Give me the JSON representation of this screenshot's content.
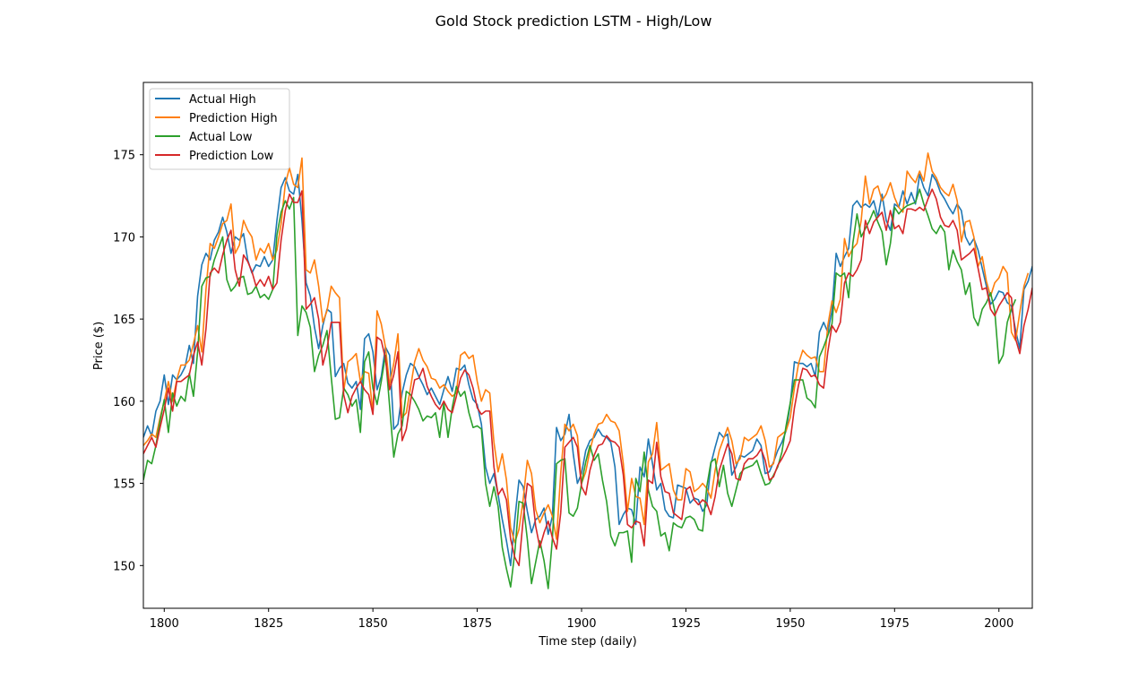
{
  "chart_data": {
    "type": "line",
    "title": "Gold Stock prediction LSTM - High/Low",
    "xlabel": "Time step (daily)",
    "ylabel": "Price ($)",
    "xlim": [
      1795,
      2008
    ],
    "ylim": [
      147.4,
      179.4
    ],
    "xticks": [
      1800,
      1825,
      1850,
      1875,
      1900,
      1925,
      1950,
      1975,
      2000
    ],
    "yticks": [
      150,
      155,
      160,
      165,
      170,
      175
    ],
    "grid": false,
    "legend_position": "upper left",
    "x_start": 1795,
    "series": [
      {
        "name": "Actual High",
        "color": "#1f77b4",
        "values": [
          157.8,
          158.5,
          157.9,
          159.4,
          160.0,
          161.6,
          159.8,
          161.6,
          161.3,
          161.6,
          162.1,
          163.4,
          162.3,
          166.4,
          168.3,
          169.0,
          168.6,
          169.8,
          170.3,
          171.2,
          170.3,
          169.0,
          170.0,
          169.8,
          170.2,
          168.6,
          167.8,
          168.3,
          168.2,
          168.8,
          168.2,
          168.6,
          171.0,
          173.0,
          173.6,
          172.8,
          172.6,
          173.8,
          171.0,
          167.2,
          166.4,
          164.5,
          163.2,
          164.6,
          165.6,
          165.4,
          161.5,
          162.0,
          162.3,
          161.1,
          160.8,
          161.2,
          159.5,
          163.8,
          164.1,
          163.0,
          160.7,
          161.5,
          163.3,
          162.8,
          158.3,
          158.6,
          160.5,
          161.6,
          162.3,
          162.1,
          161.5,
          161.0,
          160.4,
          160.8,
          160.3,
          159.8,
          160.7,
          161.5,
          160.6,
          162.0,
          161.9,
          162.2,
          161.0,
          160.1,
          159.8,
          158.6,
          156.0,
          155.0,
          155.6,
          154.3,
          152.8,
          151.5,
          150.0,
          152.8,
          155.2,
          154.8,
          153.3,
          152.0,
          152.8,
          153.0,
          153.5,
          151.9,
          153.0,
          158.4,
          157.6,
          158.0,
          159.2,
          156.8,
          155.0,
          155.6,
          157.0,
          157.6,
          157.8,
          158.3,
          157.9,
          157.8,
          157.5,
          156.0,
          152.5,
          153.1,
          153.5,
          153.4,
          152.5,
          156.0,
          155.4,
          157.7,
          156.2,
          154.6,
          155.0,
          153.4,
          153.0,
          152.9,
          154.9,
          154.8,
          154.7,
          153.8,
          154.1,
          154.0,
          153.3,
          153.7,
          156.2,
          157.2,
          158.1,
          157.8,
          158.0,
          155.5,
          156.0,
          156.7,
          156.6,
          156.8,
          157.0,
          157.7,
          157.3,
          155.6,
          155.7,
          156.3,
          157.0,
          157.5,
          158.2,
          159.8,
          162.4,
          162.3,
          162.3,
          162.1,
          162.3,
          161.5,
          164.2,
          164.8,
          164.2,
          165.5,
          169.0,
          168.2,
          168.8,
          169.3,
          171.9,
          172.2,
          171.8,
          172.0,
          171.8,
          172.2,
          171.2,
          172.6,
          171.0,
          170.4,
          172.0,
          171.8,
          172.8,
          172.0,
          172.7,
          172.0,
          173.8,
          173.0,
          172.5,
          173.8,
          173.4,
          172.7,
          172.3,
          171.8,
          171.4,
          172.0,
          171.6,
          170.0,
          169.5,
          169.9,
          169.2,
          168.1,
          167.0,
          165.9,
          166.2,
          166.7,
          166.6,
          166.0,
          165.8,
          164.3,
          163.2,
          166.8,
          167.3,
          168.2,
          168.5
        ]
      },
      {
        "name": "Prediction High",
        "color": "#ff7f0e",
        "values": [
          157.3,
          157.6,
          158.0,
          157.8,
          159.0,
          160.0,
          161.2,
          160.0,
          161.3,
          162.2,
          162.2,
          162.5,
          163.5,
          164.6,
          163.0,
          166.8,
          169.6,
          169.3,
          170.0,
          170.8,
          171.0,
          172.0,
          169.0,
          169.5,
          171.0,
          170.4,
          170.0,
          168.6,
          169.3,
          169.0,
          169.6,
          168.6,
          169.2,
          170.8,
          173.2,
          174.2,
          173.2,
          173.0,
          174.8,
          168.0,
          167.8,
          168.6,
          167.0,
          164.8,
          165.5,
          167.0,
          166.6,
          166.3,
          160.6,
          162.4,
          162.6,
          162.9,
          161.2,
          161.8,
          161.7,
          159.3,
          165.5,
          164.7,
          163.3,
          161.0,
          162.3,
          164.1,
          159.0,
          159.3,
          160.8,
          162.4,
          163.2,
          162.5,
          162.1,
          161.4,
          161.3,
          160.8,
          161.0,
          160.6,
          160.3,
          160.5,
          162.8,
          163.0,
          162.6,
          162.8,
          161.2,
          160.0,
          160.7,
          160.5,
          157.5,
          155.7,
          156.8,
          155.2,
          152.3,
          151.4,
          152.2,
          154.0,
          156.4,
          155.6,
          153.4,
          152.6,
          153.2,
          153.7,
          153.0,
          151.6,
          155.6,
          158.6,
          158.2,
          158.6,
          157.9,
          155.0,
          155.7,
          157.0,
          158.0,
          158.6,
          158.7,
          159.2,
          158.8,
          158.7,
          158.2,
          156.2,
          153.3,
          155.3,
          154.2,
          154.1,
          152.5,
          156.3,
          156.8,
          158.7,
          155.8,
          156.0,
          156.2,
          154.6,
          154.0,
          154.0,
          155.9,
          155.7,
          154.5,
          154.7,
          155.0,
          154.7,
          154.1,
          155.8,
          157.0,
          157.7,
          158.4,
          157.6,
          156.2,
          156.5,
          157.8,
          157.6,
          157.8,
          158.0,
          158.5,
          157.6,
          156.0,
          156.2,
          157.8,
          158.0,
          158.2,
          159.0,
          160.8,
          162.3,
          163.1,
          162.8,
          162.6,
          162.7,
          161.8,
          161.8,
          164.6,
          166.1,
          165.4,
          166.2,
          169.9,
          168.8,
          169.3,
          169.6,
          171.0,
          173.7,
          172.0,
          172.9,
          173.1,
          172.2,
          172.6,
          173.3,
          172.4,
          171.8,
          171.5,
          174.0,
          173.6,
          173.3,
          174.0,
          173.4,
          175.1,
          174.0,
          173.6,
          173.0,
          172.7,
          172.5,
          173.2,
          172.2,
          169.7,
          170.9,
          171.0,
          170.0,
          168.2,
          168.8,
          167.3,
          166.4,
          167.2,
          167.5,
          168.2,
          167.8,
          164.2,
          163.7,
          165.4,
          167.0,
          167.8
        ]
      },
      {
        "name": "Actual Low",
        "color": "#2ca02c",
        "values": [
          155.2,
          156.4,
          156.2,
          157.3,
          158.8,
          160.1,
          158.1,
          160.5,
          159.7,
          160.3,
          160.0,
          161.7,
          160.3,
          163.0,
          167.0,
          167.5,
          167.6,
          168.6,
          169.3,
          170.0,
          167.4,
          166.7,
          167.0,
          167.5,
          167.6,
          166.5,
          166.6,
          167.0,
          166.3,
          166.5,
          166.2,
          166.8,
          170.1,
          171.5,
          172.2,
          171.7,
          172.4,
          164.0,
          165.8,
          165.4,
          164.5,
          161.8,
          162.8,
          163.4,
          164.3,
          161.5,
          158.9,
          159.0,
          160.8,
          160.4,
          159.7,
          160.1,
          158.1,
          162.4,
          163.0,
          160.8,
          159.8,
          161.2,
          162.8,
          159.7,
          156.6,
          158.0,
          158.5,
          160.6,
          160.4,
          160.0,
          159.5,
          158.8,
          159.1,
          159.0,
          159.3,
          157.8,
          159.9,
          157.8,
          159.6,
          160.9,
          160.3,
          160.6,
          159.3,
          158.4,
          158.5,
          158.3,
          155.0,
          153.6,
          154.8,
          153.6,
          151.1,
          149.8,
          148.7,
          150.8,
          153.9,
          153.8,
          151.6,
          148.9,
          150.2,
          151.5,
          150.3,
          148.6,
          151.6,
          156.2,
          156.4,
          156.5,
          153.2,
          153.0,
          153.5,
          155.0,
          156.3,
          157.3,
          156.4,
          156.8,
          155.2,
          153.9,
          151.8,
          151.2,
          152.0,
          152.0,
          152.1,
          150.2,
          155.3,
          154.5,
          156.9,
          154.6,
          153.6,
          153.3,
          151.8,
          152.0,
          150.9,
          152.6,
          152.4,
          152.3,
          152.9,
          153.0,
          152.8,
          152.2,
          152.1,
          154.8,
          156.3,
          156.5,
          154.8,
          156.1,
          154.4,
          153.6,
          154.6,
          155.6,
          155.9,
          156.0,
          156.1,
          156.4,
          155.6,
          154.9,
          155.0,
          155.5,
          156.0,
          156.9,
          158.5,
          159.9,
          161.3,
          161.3,
          161.3,
          160.2,
          160.0,
          159.6,
          162.7,
          163.3,
          164.0,
          164.7,
          167.8,
          167.6,
          167.8,
          166.3,
          169.6,
          171.4,
          170.0,
          170.5,
          171.0,
          171.6,
          170.9,
          170.3,
          168.3,
          169.6,
          171.8,
          171.4,
          171.7,
          171.9,
          172.0,
          172.1,
          172.9,
          172.0,
          171.3,
          170.5,
          170.2,
          170.7,
          170.3,
          168.0,
          169.2,
          168.5,
          168.0,
          166.5,
          167.2,
          165.1,
          164.6,
          165.6,
          166.0,
          166.6,
          165.5,
          162.3,
          162.8,
          164.8,
          165.6,
          166.2
        ]
      },
      {
        "name": "Prediction Low",
        "color": "#d62728",
        "values": [
          156.8,
          157.3,
          157.8,
          157.2,
          158.4,
          159.5,
          160.8,
          159.4,
          161.2,
          161.2,
          161.4,
          161.6,
          162.8,
          163.6,
          162.2,
          164.4,
          167.8,
          168.1,
          167.8,
          168.9,
          169.8,
          170.4,
          168.0,
          167.0,
          168.9,
          168.5,
          167.9,
          167.0,
          167.4,
          167.0,
          167.6,
          166.8,
          167.2,
          169.8,
          171.6,
          172.6,
          172.1,
          172.1,
          172.8,
          165.6,
          165.9,
          166.3,
          165.0,
          162.2,
          163.2,
          164.8,
          164.8,
          164.8,
          160.4,
          159.3,
          160.3,
          160.8,
          161.2,
          160.7,
          160.4,
          159.2,
          163.9,
          163.7,
          162.6,
          160.7,
          161.6,
          163.0,
          157.6,
          158.3,
          160.0,
          161.3,
          161.4,
          162.0,
          160.9,
          160.3,
          159.8,
          159.5,
          160.0,
          159.5,
          159.3,
          160.3,
          161.4,
          161.9,
          161.6,
          160.8,
          159.6,
          159.2,
          159.4,
          159.4,
          156.0,
          154.3,
          154.7,
          154.0,
          151.6,
          150.5,
          150.0,
          152.8,
          155.0,
          154.8,
          152.4,
          151.1,
          152.0,
          152.7,
          151.7,
          151.0,
          153.2,
          157.2,
          157.5,
          157.8,
          157.2,
          154.8,
          154.3,
          155.8,
          156.7,
          157.3,
          157.4,
          157.9,
          157.6,
          157.5,
          157.2,
          155.5,
          152.5,
          152.3,
          152.7,
          152.6,
          151.2,
          155.2,
          155.0,
          157.5,
          155.4,
          154.5,
          154.4,
          153.2,
          153.0,
          152.8,
          154.6,
          154.8,
          154.0,
          153.7,
          154.0,
          153.8,
          153.1,
          154.2,
          155.8,
          156.6,
          157.4,
          156.8,
          155.3,
          155.2,
          156.2,
          156.5,
          156.5,
          156.7,
          157.1,
          156.4,
          155.2,
          155.4,
          156.1,
          156.5,
          157.0,
          157.6,
          159.6,
          161.0,
          162.0,
          161.9,
          161.5,
          161.6,
          161.0,
          160.8,
          163.0,
          164.6,
          164.2,
          164.8,
          167.2,
          167.8,
          167.6,
          168.0,
          168.6,
          171.0,
          170.2,
          170.9,
          171.2,
          171.5,
          170.4,
          171.6,
          170.5,
          170.7,
          170.2,
          171.7,
          171.7,
          171.6,
          171.8,
          171.6,
          172.3,
          172.9,
          172.3,
          171.2,
          170.7,
          170.6,
          171.0,
          170.4,
          168.6,
          168.8,
          169.0,
          169.3,
          168.1,
          166.8,
          166.9,
          165.6,
          165.2,
          165.8,
          166.2,
          166.6,
          166.3,
          163.8,
          162.9,
          164.6,
          165.6,
          166.9
        ]
      }
    ]
  }
}
